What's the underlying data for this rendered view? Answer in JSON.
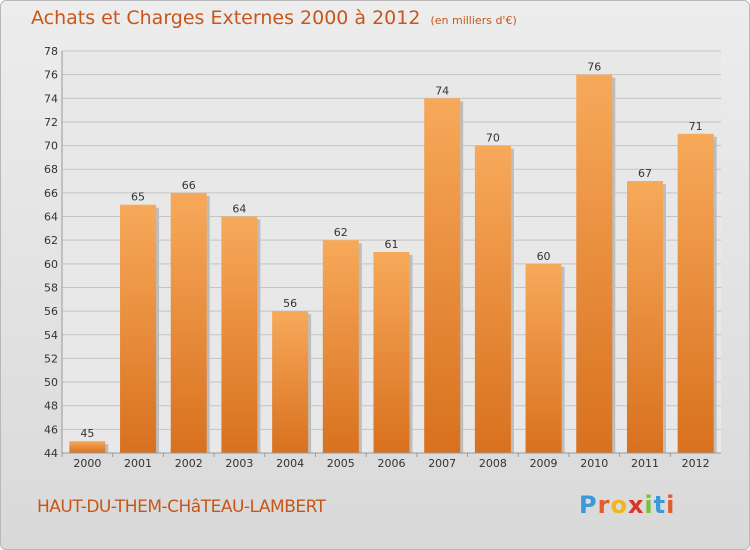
{
  "header": {
    "title": "Achats et Charges Externes 2000 à 2012",
    "unit": "(en milliers d'€)"
  },
  "footer": {
    "commune": "HAUT-DU-THEM-CHâTEAU-LAMBERT",
    "logo_letters": [
      "P",
      "r",
      "o",
      "x",
      "i",
      "t",
      "i"
    ],
    "logo_colors": [
      "#3a9ad9",
      "#e25d2a",
      "#f2b51c",
      "#d9352a",
      "#7bbf3a",
      "#3a9ad9",
      "#e25d2a"
    ]
  },
  "chart_data": {
    "type": "bar",
    "title": "Achats et Charges Externes 2000 à 2012",
    "categories": [
      "2000",
      "2001",
      "2002",
      "2003",
      "2004",
      "2005",
      "2006",
      "2007",
      "2008",
      "2009",
      "2010",
      "2011",
      "2012"
    ],
    "values": [
      45,
      65,
      66,
      64,
      56,
      62,
      61,
      74,
      70,
      60,
      76,
      67,
      71
    ],
    "ylim": [
      44,
      78
    ],
    "yticks": [
      44,
      46,
      48,
      50,
      52,
      54,
      56,
      58,
      60,
      62,
      64,
      66,
      68,
      70,
      72,
      74,
      76,
      78
    ],
    "grid": true,
    "bar_color_light": "#f7a95a",
    "bar_color_dark": "#d8711f"
  }
}
